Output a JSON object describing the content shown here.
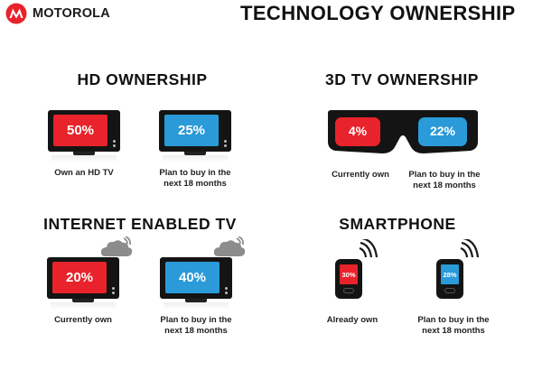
{
  "header": {
    "brand": "MOTOROLA",
    "title": "TECHNOLOGY OWNERSHIP"
  },
  "sections": {
    "hd": {
      "title": "HD OWNERSHIP",
      "items": [
        {
          "value": "50%",
          "caption_lines": [
            "Own an HD TV"
          ],
          "color": "#e8232b"
        },
        {
          "value": "25%",
          "caption_lines": [
            "Plan to buy in the",
            "next 18 months"
          ],
          "color": "#2a9ad8"
        }
      ]
    },
    "tv3d": {
      "title": "3D TV OWNERSHIP",
      "items": [
        {
          "value": "4%",
          "caption_lines": [
            "Currently own"
          ],
          "color": "#e8232b"
        },
        {
          "value": "22%",
          "caption_lines": [
            "Plan to buy in the",
            "next 18 months"
          ],
          "color": "#2a9ad8"
        }
      ]
    },
    "internet": {
      "title": "INTERNET ENABLED TV",
      "items": [
        {
          "value": "20%",
          "caption_lines": [
            "Currently own"
          ],
          "color": "#e8232b"
        },
        {
          "value": "40%",
          "caption_lines": [
            "Plan to buy in the",
            "next 18 months"
          ],
          "color": "#2a9ad8"
        }
      ]
    },
    "smartphone": {
      "title": "SMARTPHONE",
      "items": [
        {
          "value": "30%",
          "caption_lines": [
            "Already own"
          ],
          "color": "#e8232b"
        },
        {
          "value": "28%",
          "caption_lines": [
            "Plan to buy in the",
            "next 18 months"
          ],
          "color": "#2a9ad8"
        }
      ]
    }
  },
  "icons": {
    "logo": "motorola-logo-icon",
    "tv": "tv-icon",
    "glasses": "3d-glasses-icon",
    "cloud": "cloud-icon",
    "wireless": "wireless-signal-icon",
    "phone": "smartphone-icon"
  }
}
